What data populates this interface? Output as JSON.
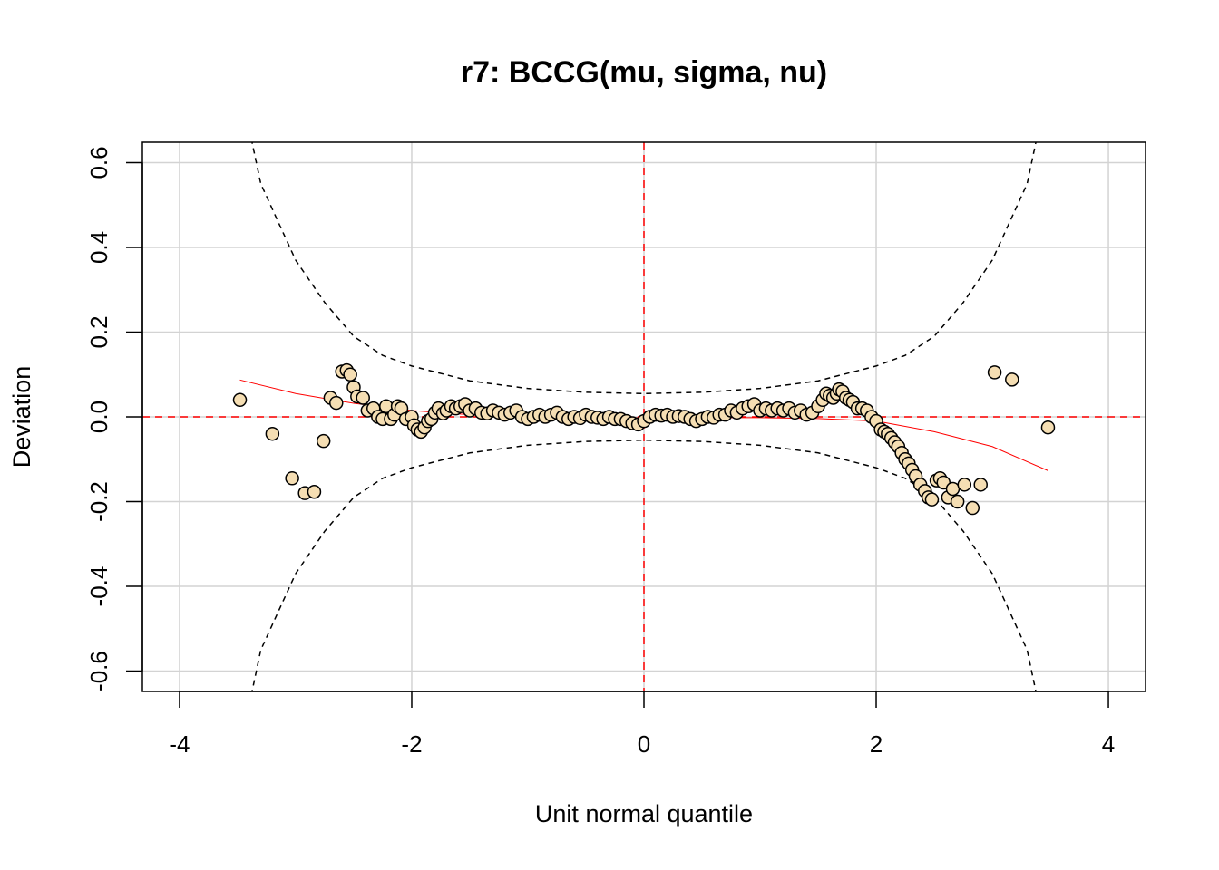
{
  "chart_data": {
    "type": "scatter",
    "title": "r7: BCCG(mu, sigma, nu)",
    "x_label": "Unit normal quantile",
    "y_label": "Deviation",
    "xlim": [
      -4.32,
      4.32
    ],
    "ylim": [
      -0.648,
      0.648
    ],
    "xticks": [
      -4,
      -2,
      0,
      2,
      4
    ],
    "yticks": [
      -0.6,
      -0.4,
      -0.2,
      {
        "value": 0,
        "label": "0.0"
      },
      0.2,
      0.4,
      0.6
    ],
    "grid": true,
    "grid_color": "#d3d3d3",
    "reference_x": 0,
    "reference_y": 0,
    "reference_color": "#ff0000",
    "points": {
      "fill": "#f5deb3",
      "stroke": "#000000",
      "x": [
        -3.48,
        -3.2,
        -3.03,
        -2.92,
        -2.84,
        -2.76,
        -2.7,
        -2.65,
        -2.6,
        -2.56,
        -2.53,
        -2.5,
        -2.47,
        -2.42,
        -2.38,
        -2.33,
        -2.29,
        -2.25,
        -2.22,
        -2.18,
        -2.15,
        -2.12,
        -2.09,
        -2.05,
        -2.0,
        -1.98,
        -1.95,
        -1.92,
        -1.89,
        -1.86,
        -1.83,
        -1.8,
        -1.77,
        -1.73,
        -1.7,
        -1.66,
        -1.62,
        -1.58,
        -1.54,
        -1.5,
        -1.45,
        -1.4,
        -1.35,
        -1.3,
        -1.25,
        -1.2,
        -1.15,
        -1.1,
        -1.05,
        -1.0,
        -0.95,
        -0.9,
        -0.85,
        -0.8,
        -0.75,
        -0.7,
        -0.65,
        -0.6,
        -0.55,
        -0.5,
        -0.45,
        -0.4,
        -0.35,
        -0.3,
        -0.25,
        -0.2,
        -0.15,
        -0.1,
        -0.05,
        0,
        0.05,
        0.1,
        0.15,
        0.2,
        0.25,
        0.3,
        0.35,
        0.4,
        0.45,
        0.5,
        0.55,
        0.6,
        0.65,
        0.7,
        0.75,
        0.8,
        0.85,
        0.9,
        0.95,
        1.0,
        1.05,
        1.1,
        1.15,
        1.2,
        1.25,
        1.3,
        1.35,
        1.4,
        1.45,
        1.5,
        1.54,
        1.57,
        1.6,
        1.63,
        1.66,
        1.68,
        1.71,
        1.74,
        1.77,
        1.8,
        1.84,
        1.88,
        1.92,
        1.96,
        2.0,
        2.04,
        2.07,
        2.1,
        2.13,
        2.16,
        2.19,
        2.22,
        2.25,
        2.28,
        2.31,
        2.34,
        2.38,
        2.42,
        2.45,
        2.48,
        2.52,
        2.55,
        2.58,
        2.62,
        2.66,
        2.7,
        2.76,
        2.83,
        2.9,
        3.02,
        3.17,
        3.48
      ],
      "y": [
        0.04,
        -0.04,
        -0.145,
        -0.18,
        -0.177,
        -0.057,
        0.045,
        0.033,
        0.107,
        0.11,
        0.1,
        0.07,
        0.048,
        0.045,
        0.015,
        0.02,
        0.0,
        -0.005,
        0.025,
        -0.005,
        0.005,
        0.025,
        0.02,
        -0.005,
        0.0,
        -0.02,
        -0.03,
        -0.035,
        -0.025,
        -0.01,
        -0.005,
        0.01,
        0.02,
        0.008,
        0.015,
        0.025,
        0.02,
        0.025,
        0.03,
        0.015,
        0.02,
        0.01,
        0.008,
        0.015,
        0.01,
        0.005,
        0.01,
        0.015,
        0.0,
        -0.005,
        0.0,
        0.005,
        0.0,
        0.005,
        0.01,
        0.0,
        -0.005,
        0.0,
        -0.003,
        0.005,
        0.0,
        -0.002,
        -0.005,
        0.0,
        -0.005,
        -0.005,
        -0.01,
        -0.015,
        -0.018,
        -0.01,
        0.0,
        0.005,
        0.003,
        0.005,
        0.0,
        0.002,
        0.0,
        -0.005,
        -0.01,
        -0.005,
        0.0,
        -0.002,
        0.005,
        0.005,
        0.015,
        0.01,
        0.02,
        0.025,
        0.03,
        0.015,
        0.02,
        0.015,
        0.02,
        0.015,
        0.02,
        0.01,
        0.015,
        0.005,
        0.01,
        0.025,
        0.04,
        0.055,
        0.05,
        0.045,
        0.055,
        0.065,
        0.06,
        0.045,
        0.04,
        0.035,
        0.02,
        0.02,
        0.015,
        0.0,
        -0.01,
        -0.03,
        -0.035,
        -0.04,
        -0.05,
        -0.06,
        -0.07,
        -0.085,
        -0.1,
        -0.11,
        -0.125,
        -0.14,
        -0.16,
        -0.175,
        -0.19,
        -0.195,
        -0.15,
        -0.145,
        -0.155,
        -0.19,
        -0.17,
        -0.2,
        -0.16,
        -0.215,
        -0.16,
        0.105,
        0.088,
        -0.025
      ]
    },
    "fit": {
      "color": "#ff0000",
      "x": [
        -3.48,
        -3.0,
        -2.5,
        -2.0,
        -1.5,
        -1.0,
        -0.5,
        0,
        0.5,
        1.0,
        1.5,
        2.0,
        2.5,
        3.0,
        3.48
      ],
      "y": [
        0.087,
        0.055,
        0.032,
        0.015,
        0.005,
        0.0,
        -0.002,
        -0.002,
        -0.002,
        -0.002,
        -0.004,
        -0.01,
        -0.035,
        -0.07,
        -0.127
      ]
    },
    "upper_band": {
      "color": "#000000",
      "x": [
        -3.4,
        -3.3,
        -3.0,
        -2.75,
        -2.5,
        -2.25,
        -2.0,
        -1.5,
        -1.0,
        -0.5,
        0,
        0.5,
        1.0,
        1.5,
        2.0,
        2.25,
        2.5,
        2.75,
        3.0,
        3.3,
        3.4
      ],
      "y": [
        0.68,
        0.55,
        0.37,
        0.27,
        0.19,
        0.145,
        0.12,
        0.085,
        0.067,
        0.058,
        0.055,
        0.058,
        0.067,
        0.085,
        0.12,
        0.145,
        0.19,
        0.27,
        0.37,
        0.55,
        0.68
      ]
    },
    "lower_band": {
      "color": "#000000",
      "x": [
        -3.4,
        -3.3,
        -3.0,
        -2.75,
        -2.5,
        -2.25,
        -2.0,
        -1.5,
        -1.0,
        -0.5,
        0,
        0.5,
        1.0,
        1.5,
        2.0,
        2.25,
        2.5,
        2.75,
        3.0,
        3.3,
        3.4
      ],
      "y": [
        -0.68,
        -0.55,
        -0.37,
        -0.27,
        -0.19,
        -0.145,
        -0.12,
        -0.085,
        -0.067,
        -0.058,
        -0.055,
        -0.058,
        -0.067,
        -0.085,
        -0.12,
        -0.145,
        -0.19,
        -0.27,
        -0.37,
        -0.55,
        -0.68
      ]
    }
  }
}
